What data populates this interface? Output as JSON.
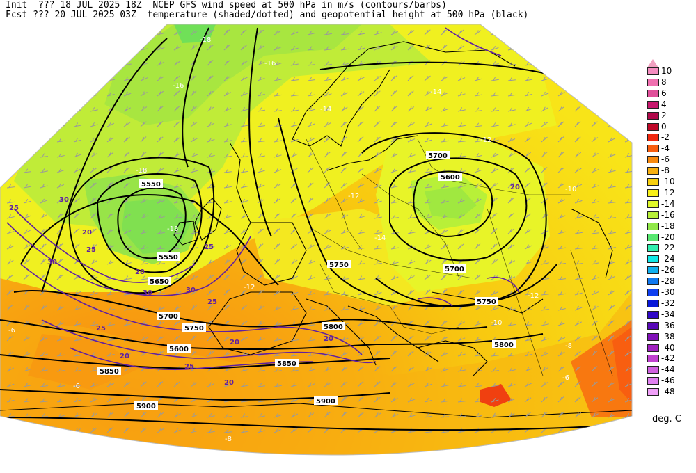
{
  "header": {
    "line1": "Init  ??? 18 JUL 2025 18Z  NCEP GFS wind speed at 500 hPa in m/s (contours/barbs)",
    "line2": "Fcst ??? 20 JUL 2025 03Z  temperature (shaded/dotted) and geopotential height at 500 hPa (black)"
  },
  "colorbar": {
    "units": "deg. C",
    "levels": [
      {
        "label": "10",
        "color": "#f58cc0"
      },
      {
        "label": "8",
        "color": "#f070b0"
      },
      {
        "label": "6",
        "color": "#e0509a"
      },
      {
        "label": "4",
        "color": "#c8186e"
      },
      {
        "label": "2",
        "color": "#b0084a"
      },
      {
        "label": "0",
        "color": "#c00828"
      },
      {
        "label": "-2",
        "color": "#f02810"
      },
      {
        "label": "-4",
        "color": "#f85e10"
      },
      {
        "label": "-6",
        "color": "#f88a10"
      },
      {
        "label": "-8",
        "color": "#f8b010"
      },
      {
        "label": "-10",
        "color": "#f8d010"
      },
      {
        "label": "-12",
        "color": "#f8f018"
      },
      {
        "label": "-14",
        "color": "#e0f828"
      },
      {
        "label": "-16",
        "color": "#b8f038"
      },
      {
        "label": "-18",
        "color": "#90e848"
      },
      {
        "label": "-20",
        "color": "#58e870"
      },
      {
        "label": "-22",
        "color": "#30f0b0"
      },
      {
        "label": "-24",
        "color": "#10e8e8"
      },
      {
        "label": "-26",
        "color": "#10b0f0"
      },
      {
        "label": "-28",
        "color": "#1078f0"
      },
      {
        "label": "-30",
        "color": "#1040f0"
      },
      {
        "label": "-32",
        "color": "#0818d8"
      },
      {
        "label": "-34",
        "color": "#3008c8"
      },
      {
        "label": "-36",
        "color": "#5808b8"
      },
      {
        "label": "-38",
        "color": "#8010b8"
      },
      {
        "label": "-40",
        "color": "#a020c0"
      },
      {
        "label": "-42",
        "color": "#c040d0"
      },
      {
        "label": "-44",
        "color": "#d060e0"
      },
      {
        "label": "-46",
        "color": "#e080f0"
      },
      {
        "label": "-48",
        "color": "#f0a0f8"
      }
    ]
  },
  "map": {
    "height_labels": [
      "5550",
      "5600",
      "5650",
      "5700",
      "5750",
      "5800",
      "5850",
      "5900"
    ],
    "wind_labels": [
      "20",
      "25",
      "30"
    ],
    "temp_labels": [
      "-6",
      "-8",
      "-10",
      "-12",
      "-14",
      "-16",
      "-18"
    ]
  }
}
